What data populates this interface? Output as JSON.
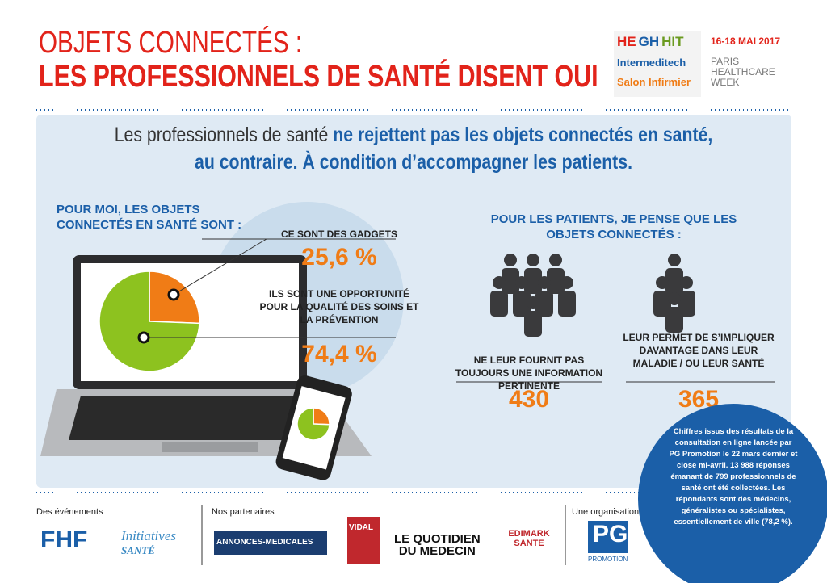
{
  "header": {
    "title_line1": "OBJETS CONNECTÉS :",
    "title_line2": "LES PROFESSIONNELS DE SANTÉ DISENT OUI"
  },
  "event": {
    "logos": [
      "HE",
      "GH",
      "HIT"
    ],
    "intermeditech": "Intermeditech",
    "salon": "Salon Infirmier",
    "dates": "16-18 MAI 2017",
    "city": "PARIS",
    "name_1": "HEALTHCARE",
    "name_2": "WEEK"
  },
  "intro": {
    "plain": "Les professionnels de santé ",
    "bold_1": "ne rejettent pas les objets connectés en santé,",
    "bold_2": "au contraire. À condition d’accompagner les patients."
  },
  "left": {
    "heading": "POUR MOI, LES OBJETS CONNECTÉS EN SANTÉ SONT :",
    "items": [
      {
        "label": "CE SONT DES GADGETS"
      },
      {
        "label": "ILS SONT UNE OPPORTUNITÉ POUR LA QUALITÉ DES SOINS ET LA PRÉVENTION"
      }
    ]
  },
  "pie": {
    "values": [
      25.6,
      74.4
    ],
    "value_labels": [
      "25,6 %",
      "74,4 %"
    ],
    "colors": [
      "#f07c16",
      "#8dc21f"
    ]
  },
  "right": {
    "heading": "POUR LES PATIENTS, JE PENSE QUE LES OBJETS CONNECTÉS :",
    "items": [
      {
        "label": "NE LEUR FOURNIT PAS TOUJOURS UNE INFORMATION PERTINENTE",
        "value": "430"
      },
      {
        "label": "LEUR PERMET DE S’IMPLIQUER DAVANTAGE DANS LEUR MALADIE / OU LEUR SANTÉ",
        "value": "365"
      }
    ]
  },
  "note": "Chiffres issus des résultats de la consultation en ligne lancée par PG Promotion le 22 mars dernier et close mi-avril. 13 988 réponses émanant de 799 professionnels de santé ont été collectées. Les répondants sont des médecins, généralistes ou spécialistes, essentiellement de ville (78,2 %).",
  "footer": {
    "events": "Des événements",
    "partners": "Nos partenaires",
    "organisation": "Une organisation",
    "fhf": "FHF",
    "initiatives": "Initiatives",
    "sante": "SANTÉ",
    "annonces": "ANNONCES-MEDICALES",
    "vidal": "VIDAL",
    "quotidien_1": "LE QUOTIDIEN",
    "quotidien_2": "DU MEDECIN",
    "edimark": "EDIMARK SANTE",
    "pg": "PG",
    "promotion": "PROMOTION"
  }
}
